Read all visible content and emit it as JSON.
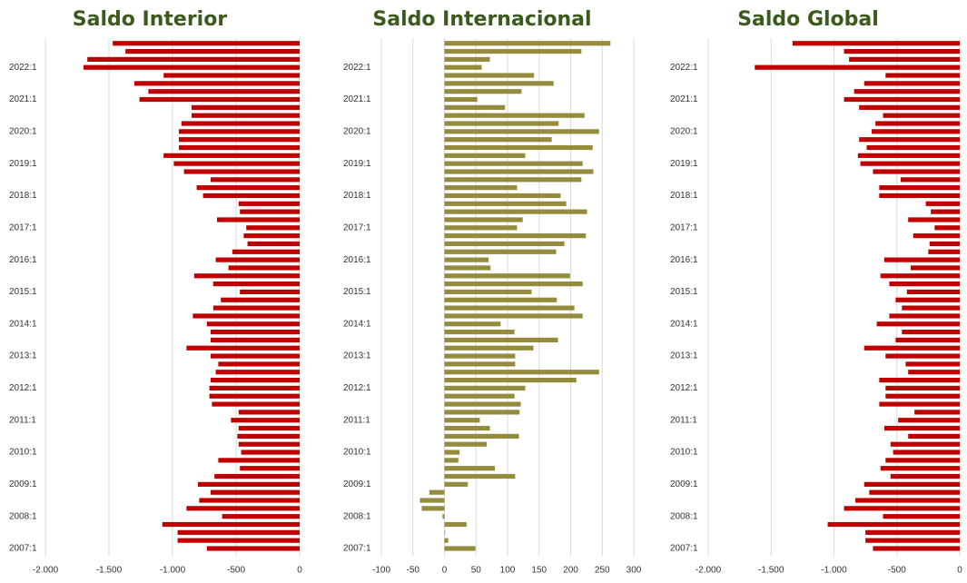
{
  "chart_data": [
    {
      "type": "bar",
      "orientation": "horizontal",
      "title": "Saldo Interior",
      "color": "#c00000",
      "categories": [
        "2007:1",
        null,
        null,
        null,
        "2008:1",
        null,
        null,
        null,
        "2009:1",
        null,
        null,
        null,
        "2010:1",
        null,
        null,
        null,
        "2011:1",
        null,
        null,
        null,
        "2012:1",
        null,
        null,
        null,
        "2013:1",
        null,
        null,
        null,
        "2014:1",
        null,
        null,
        null,
        "2015:1",
        null,
        null,
        null,
        "2016:1",
        null,
        null,
        null,
        "2017:1",
        null,
        null,
        null,
        "2018:1",
        null,
        null,
        null,
        "2019:1",
        null,
        null,
        null,
        "2020:1",
        null,
        null,
        null,
        "2021:1",
        null,
        null,
        null,
        "2022:1",
        null,
        null,
        null
      ],
      "values": [
        -730,
        -960,
        -960,
        -1080,
        -610,
        -890,
        -790,
        -700,
        -800,
        -670,
        -470,
        -640,
        -460,
        -480,
        -490,
        -480,
        -540,
        -480,
        -690,
        -710,
        -710,
        -700,
        -660,
        -640,
        -700,
        -890,
        -700,
        -700,
        -730,
        -840,
        -680,
        -620,
        -470,
        -680,
        -830,
        -560,
        -660,
        -530,
        -410,
        -440,
        -420,
        -650,
        -470,
        -480,
        -760,
        -810,
        -700,
        -910,
        -990,
        -1070,
        -950,
        -950,
        -950,
        -930,
        -850,
        -850,
        -1260,
        -1190,
        -1300,
        -1070,
        -1700,
        -1670,
        -1370,
        -1470
      ],
      "xlim": [
        -2000,
        0
      ],
      "xticks": [
        {
          "value": -2000,
          "label": "-2.000"
        },
        {
          "value": -1500,
          "label": "-1.500"
        },
        {
          "value": -1000,
          "label": "-1.000"
        },
        -500,
        0
      ],
      "grid": true
    },
    {
      "type": "bar",
      "orientation": "horizontal",
      "title": "Saldo Internacional",
      "color": "#948b3d",
      "categories": [
        "2007:1",
        null,
        null,
        null,
        "2008:1",
        null,
        null,
        null,
        "2009:1",
        null,
        null,
        null,
        "2010:1",
        null,
        null,
        null,
        "2011:1",
        null,
        null,
        null,
        "2012:1",
        null,
        null,
        null,
        "2013:1",
        null,
        null,
        null,
        "2014:1",
        null,
        null,
        null,
        "2015:1",
        null,
        null,
        null,
        "2016:1",
        null,
        null,
        null,
        "2017:1",
        null,
        null,
        null,
        "2018:1",
        null,
        null,
        null,
        "2019:1",
        null,
        null,
        null,
        "2020:1",
        null,
        null,
        null,
        "2021:1",
        null,
        null,
        null,
        "2022:1",
        null,
        null,
        null
      ],
      "values": [
        49,
        6,
        1,
        35,
        -3,
        -36,
        -39,
        -24,
        37,
        112,
        80,
        22,
        24,
        67,
        118,
        72,
        56,
        119,
        121,
        111,
        128,
        209,
        245,
        112,
        112,
        141,
        180,
        111,
        89,
        219,
        206,
        178,
        138,
        219,
        199,
        73,
        70,
        177,
        190,
        224,
        115,
        124,
        226,
        193,
        184,
        115,
        217,
        236,
        219,
        128,
        235,
        170,
        245,
        181,
        222,
        96,
        52,
        122,
        173,
        142,
        59,
        72,
        217,
        263
      ],
      "xlim": [
        -100,
        300
      ],
      "xticks": [
        -100,
        -50,
        0,
        50,
        100,
        150,
        200,
        250,
        300
      ],
      "grid": true
    },
    {
      "type": "bar",
      "orientation": "horizontal",
      "title": "Saldo Global",
      "color": "#c00000",
      "categories": [
        "2007:1",
        null,
        null,
        null,
        "2008:1",
        null,
        null,
        null,
        "2009:1",
        null,
        null,
        null,
        "2010:1",
        null,
        null,
        null,
        "2011:1",
        null,
        null,
        null,
        "2012:1",
        null,
        null,
        null,
        "2013:1",
        null,
        null,
        null,
        "2014:1",
        null,
        null,
        null,
        "2015:1",
        null,
        null,
        null,
        "2016:1",
        null,
        null,
        null,
        "2017:1",
        null,
        null,
        null,
        "2018:1",
        null,
        null,
        null,
        "2019:1",
        null,
        null,
        null,
        "2020:1",
        null,
        null,
        null,
        "2021:1",
        null,
        null,
        null,
        "2022:1",
        null,
        null,
        null
      ],
      "values": [
        -690,
        -750,
        -750,
        -1050,
        -610,
        -920,
        -830,
        -720,
        -760,
        -550,
        -630,
        -590,
        -530,
        -550,
        -410,
        -600,
        -490,
        -360,
        -640,
        -590,
        -590,
        -640,
        -410,
        -430,
        -590,
        -760,
        -510,
        -460,
        -660,
        -560,
        -460,
        -510,
        -420,
        -560,
        -630,
        -390,
        -600,
        -250,
        -240,
        -370,
        -200,
        -410,
        -230,
        -270,
        -640,
        -640,
        -470,
        -690,
        -790,
        -810,
        -740,
        -800,
        -700,
        -670,
        -610,
        -800,
        -920,
        -840,
        -760,
        -590,
        -1630,
        -880,
        -920,
        -1330
      ],
      "xlim": [
        -2000,
        0
      ],
      "xticks": [
        {
          "value": -2000,
          "label": "-2.000"
        },
        {
          "value": -1500,
          "label": "-1.500"
        },
        {
          "value": -1000,
          "label": "-1.000"
        },
        -500,
        0
      ],
      "grid": true
    }
  ]
}
